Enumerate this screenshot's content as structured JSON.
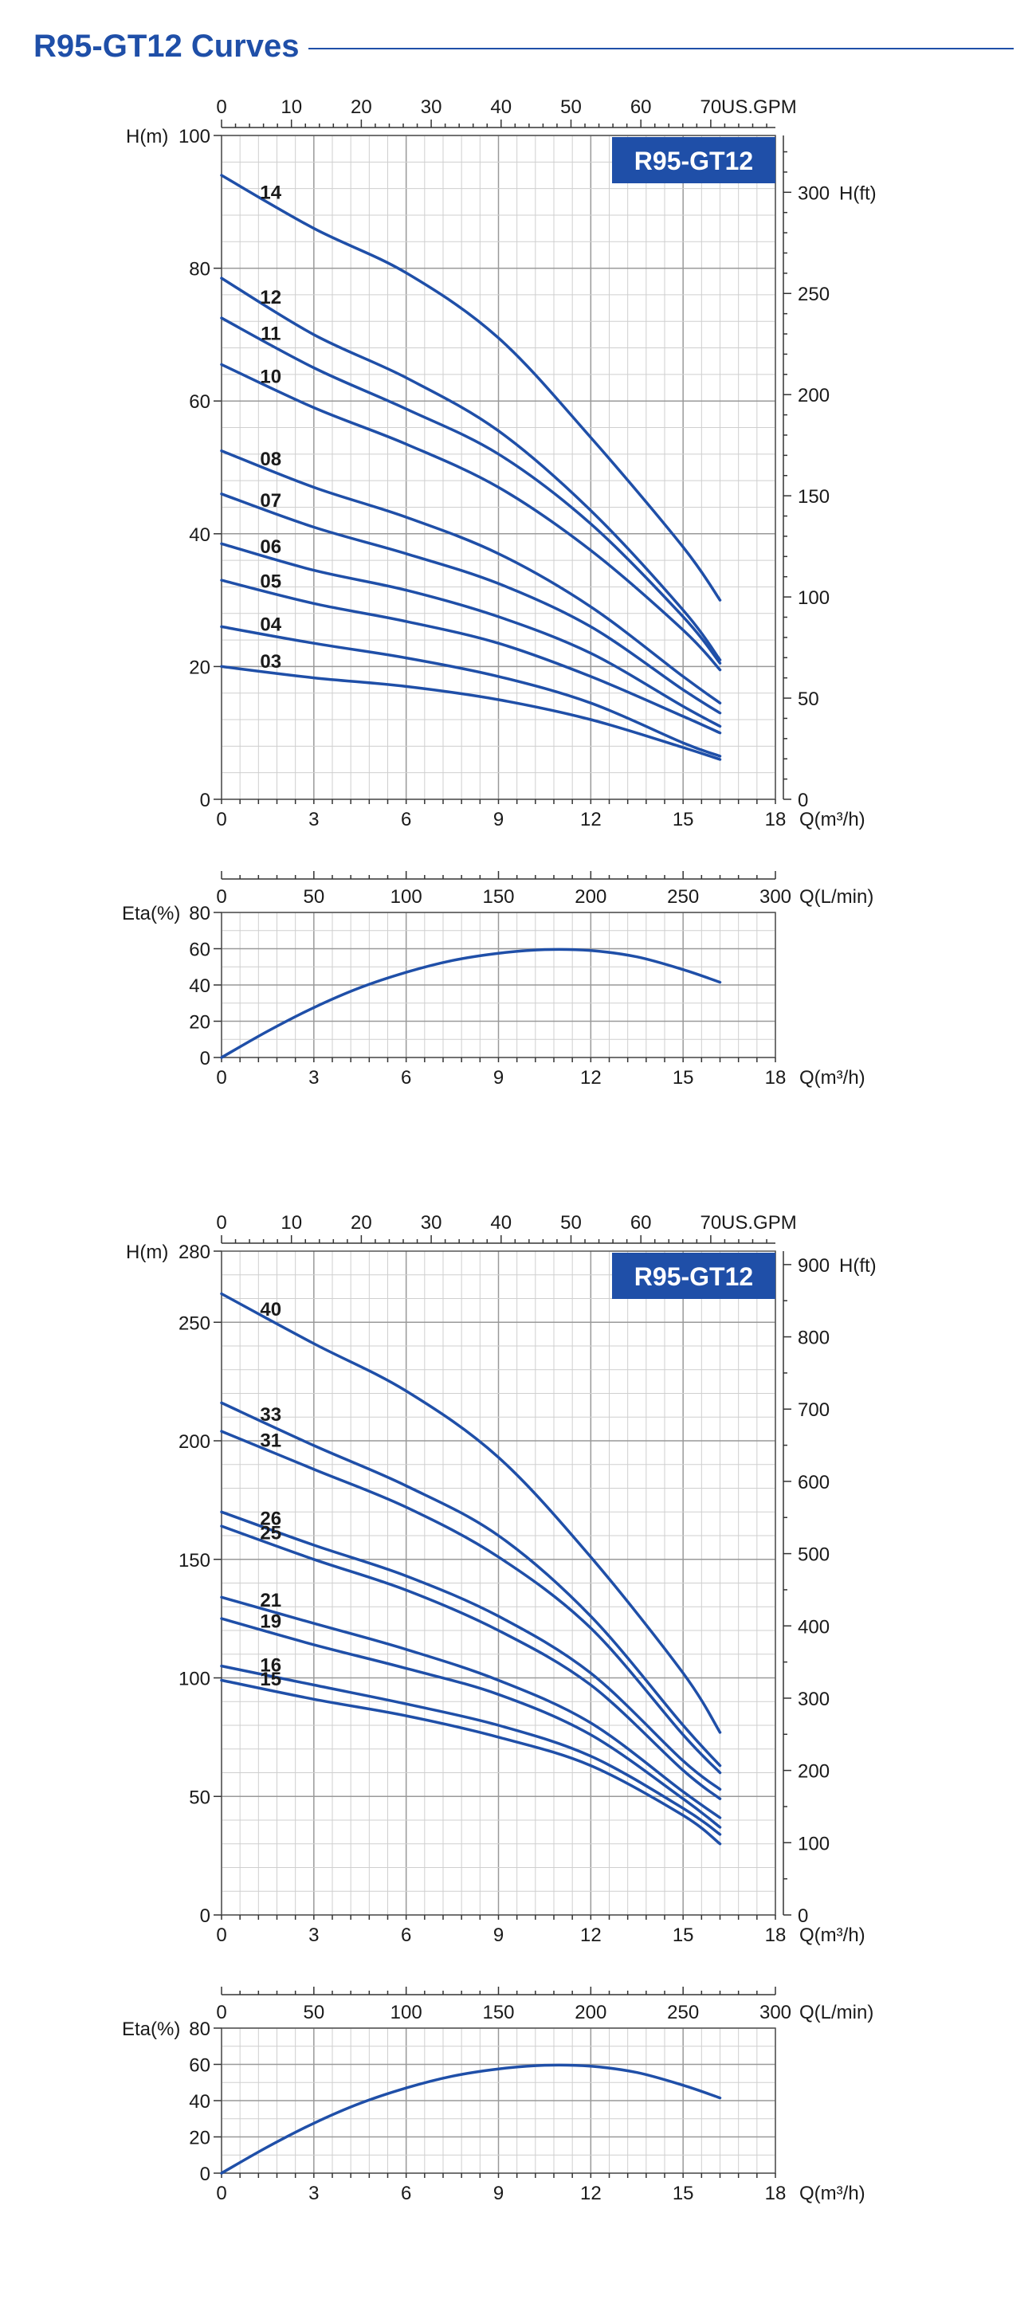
{
  "page": {
    "title": "R95-GT12 Curves",
    "colors": {
      "accent": "#1f4fa8",
      "curve": "#1f4fa8",
      "badge_bg": "#1f4fa8",
      "badge_text": "#ffffff",
      "text": "#1a1a1a"
    }
  },
  "chart_data": [
    {
      "type": "line",
      "badge": "R95-GT12",
      "ylabel": "H(m)",
      "ylabel_right": "H(ft)",
      "xlabel": "Q(m³/h)",
      "xlabel_top": "US.GPM",
      "xlabel_lmin": "Q(L/min)",
      "xlim": [
        0,
        18
      ],
      "ylim": [
        0,
        100
      ],
      "ft_lim": [
        0,
        328.08
      ],
      "gpm_lim": [
        0,
        79.25
      ],
      "xticks": [
        0,
        3,
        6,
        9,
        12,
        15,
        18
      ],
      "yticks": [
        0,
        20,
        40,
        60,
        80,
        100
      ],
      "ft_ticks": [
        0,
        50,
        100,
        150,
        200,
        250,
        300
      ],
      "gpm_ticks": [
        0,
        10,
        20,
        30,
        40,
        50,
        60,
        70
      ],
      "lmin_ticks": [
        0,
        50,
        100,
        150,
        200,
        250,
        300
      ],
      "lmin_lim": [
        0,
        300
      ],
      "x": [
        0,
        3,
        6,
        9,
        12,
        15,
        16.2
      ],
      "series": [
        {
          "name": "14",
          "values": [
            94.0,
            86.0,
            79.3,
            69.5,
            54.5,
            38.0,
            30.0
          ]
        },
        {
          "name": "12",
          "values": [
            78.5,
            70.0,
            63.5,
            55.5,
            43.5,
            28.5,
            21.0
          ]
        },
        {
          "name": "11",
          "values": [
            72.5,
            65.0,
            58.8,
            52.0,
            41.5,
            27.5,
            20.5
          ]
        },
        {
          "name": "10",
          "values": [
            65.5,
            59.0,
            53.5,
            47.0,
            37.5,
            25.5,
            19.5
          ]
        },
        {
          "name": "08",
          "values": [
            52.5,
            47.0,
            42.5,
            37.0,
            29.0,
            18.5,
            14.5
          ]
        },
        {
          "name": "07",
          "values": [
            46.0,
            41.0,
            37.0,
            32.5,
            26.0,
            16.5,
            13.0
          ]
        },
        {
          "name": "06",
          "values": [
            38.5,
            34.5,
            31.5,
            27.5,
            22.0,
            14.0,
            11.0
          ]
        },
        {
          "name": "05",
          "values": [
            33.0,
            29.5,
            26.8,
            23.5,
            18.5,
            12.5,
            10.0
          ]
        },
        {
          "name": "04",
          "values": [
            26.0,
            23.5,
            21.3,
            18.5,
            14.5,
            8.5,
            6.5
          ]
        },
        {
          "name": "03",
          "values": [
            20.0,
            18.3,
            17.0,
            15.0,
            12.0,
            7.8,
            6.0
          ]
        }
      ],
      "efficiency": {
        "ylabel": "Eta(%)",
        "xlabel": "Q(m³/h)",
        "ylim": [
          0,
          80
        ],
        "yticks": [
          0,
          20,
          40,
          60,
          80
        ],
        "xticks": [
          0,
          3,
          6,
          9,
          12,
          15,
          18
        ],
        "x": [
          0,
          1.5,
          3,
          4.5,
          6,
          7.5,
          9,
          10.5,
          12,
          13.5,
          15,
          16.2
        ],
        "values": [
          0,
          14.5,
          27.5,
          38.5,
          47.0,
          53.5,
          57.5,
          59.5,
          59.0,
          55.5,
          48.5,
          41.5
        ]
      }
    },
    {
      "type": "line",
      "badge": "R95-GT12",
      "ylabel": "H(m)",
      "ylabel_right": "H(ft)",
      "xlabel": "Q(m³/h)",
      "xlabel_top": "US.GPM",
      "xlabel_lmin": "Q(L/min)",
      "xlim": [
        0,
        18
      ],
      "ylim": [
        0,
        280
      ],
      "ft_lim": [
        0,
        918.6
      ],
      "gpm_lim": [
        0,
        79.25
      ],
      "xticks": [
        0,
        3,
        6,
        9,
        12,
        15,
        18
      ],
      "yticks": [
        0,
        50,
        100,
        150,
        200,
        250,
        280
      ],
      "ft_ticks": [
        0,
        100,
        200,
        300,
        400,
        500,
        600,
        700,
        800,
        900
      ],
      "gpm_ticks": [
        0,
        10,
        20,
        30,
        40,
        50,
        60,
        70
      ],
      "lmin_ticks": [
        0,
        50,
        100,
        150,
        200,
        250,
        300
      ],
      "lmin_lim": [
        0,
        300
      ],
      "x": [
        0,
        3,
        6,
        9,
        12,
        15,
        16.2
      ],
      "series": [
        {
          "name": "40",
          "values": [
            262,
            241,
            221,
            193,
            151,
            102,
            77
          ]
        },
        {
          "name": "33",
          "values": [
            216,
            198,
            181,
            160,
            126,
            80,
            63
          ]
        },
        {
          "name": "31",
          "values": [
            204,
            188,
            172,
            151,
            121,
            76,
            60
          ]
        },
        {
          "name": "26",
          "values": [
            170,
            156,
            143,
            126,
            102,
            65,
            53
          ]
        },
        {
          "name": "25",
          "values": [
            164,
            150,
            137,
            120,
            97,
            61,
            49
          ]
        },
        {
          "name": "21",
          "values": [
            134,
            123,
            112,
            99,
            81,
            52,
            41
          ]
        },
        {
          "name": "19",
          "values": [
            125,
            114,
            104,
            93,
            76,
            49,
            37
          ]
        },
        {
          "name": "16",
          "values": [
            105,
            97,
            89,
            80,
            67,
            45,
            34
          ]
        },
        {
          "name": "15",
          "values": [
            99,
            91,
            84,
            75,
            63,
            42,
            30
          ]
        }
      ],
      "efficiency": {
        "ylabel": "Eta(%)",
        "xlabel": "Q(m³/h)",
        "ylim": [
          0,
          80
        ],
        "yticks": [
          0,
          20,
          40,
          60,
          80
        ],
        "xticks": [
          0,
          3,
          6,
          9,
          12,
          15,
          18
        ],
        "x": [
          0,
          1.5,
          3,
          4.5,
          6,
          7.5,
          9,
          10.5,
          12,
          13.5,
          15,
          16.2
        ],
        "values": [
          0,
          14.5,
          27.5,
          38.5,
          47.0,
          53.5,
          57.5,
          59.5,
          59.0,
          55.5,
          48.5,
          41.5
        ]
      }
    }
  ]
}
